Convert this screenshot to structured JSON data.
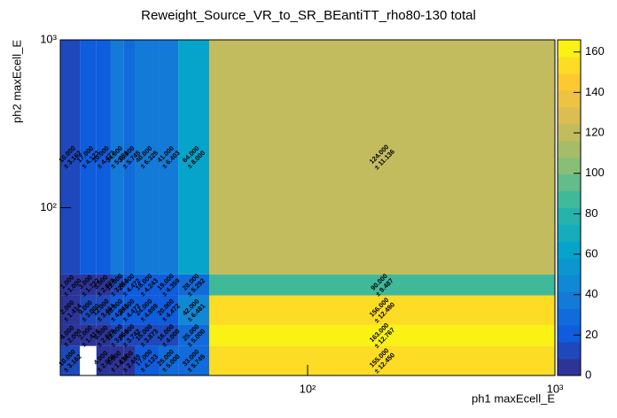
{
  "chart_data": {
    "type": "heatmap",
    "title": "Reweight_Source_VR_to_SR_BEantiTT_rho80-130 total",
    "x_label": "ph1 maxEcell_E",
    "y_label": "ph2 maxEcell_E",
    "log_x": true,
    "log_y": true,
    "xlim": [
      10,
      1000
    ],
    "ylim": [
      10,
      1000
    ],
    "xticks": [
      {
        "value": 100,
        "label": "10²"
      },
      {
        "value": 1000,
        "label": "10³"
      }
    ],
    "yticks": [
      {
        "value": 100,
        "label": "10²"
      },
      {
        "value": 1000,
        "label": "10³"
      }
    ],
    "x_edges": [
      10,
      12,
      14,
      16,
      18,
      20,
      25,
      30,
      40,
      1000
    ],
    "y_edges": [
      10,
      15,
      20,
      30,
      40,
      1000
    ],
    "z": [
      [
        10,
        null,
        4,
        2,
        6,
        17,
        25,
        33,
        155
      ],
      [
        4,
        2,
        8,
        12,
        14,
        15,
        16,
        25,
        163
      ],
      [
        2,
        9,
        12,
        18,
        20,
        24,
        20,
        42,
        156
      ],
      [
        1,
        3,
        8,
        12,
        20,
        18,
        19,
        28,
        90
      ],
      [
        10,
        17,
        20,
        34,
        33,
        40,
        41,
        64,
        124
      ]
    ],
    "value_labels": [
      [
        "10.000",
        null,
        "4.000",
        "2.000",
        "6.000",
        "17.000",
        "25.000",
        "33.000",
        "155.000"
      ],
      [
        "4.000",
        "2.000",
        "8.000",
        "12.000",
        "14.000",
        "15.000",
        "16.000",
        "25.000",
        "163.000"
      ],
      [
        "2.000",
        "9.000",
        "12.000",
        "18.000",
        "20.000",
        "24.000",
        "20.000",
        "42.000",
        "156.000"
      ],
      [
        "1.000",
        "3.000",
        "8.000",
        "12.000",
        "20.000",
        "18.000",
        "19.000",
        "28.000",
        "90.000"
      ],
      [
        "10.000",
        "17.000",
        "20.000",
        "34.000",
        "33.000",
        "40.000",
        "41.000",
        "64.000",
        "124.000"
      ]
    ],
    "error_labels": [
      [
        "± 3.162",
        null,
        "± 2.000",
        "± 1.414",
        "± 2.449",
        "± 4.123",
        "± 5.000",
        "± 5.745",
        "± 12.450"
      ],
      [
        "± 2.000",
        "± 1.414",
        "± 2.828",
        "± 3.464",
        "± 3.742",
        "± 3.873",
        "± 4.000",
        "± 5.000",
        "± 12.767"
      ],
      [
        "± 1.414",
        "± 3.000",
        "± 3.464",
        "± 4.243",
        "± 4.472",
        "± 4.899",
        "± 4.472",
        "± 6.481",
        "± 12.490"
      ],
      [
        "± 1.000",
        "± 1.732",
        "± 2.828",
        "± 3.464",
        "± 4.472",
        "± 4.243",
        "± 4.359",
        "± 5.292",
        "± 9.487"
      ],
      [
        "± 3.162",
        "± 4.123",
        "± 4.472",
        "± 5.831",
        "± 5.745",
        "± 6.325",
        "± 6.403",
        "± 8.000",
        "± 11.136"
      ]
    ],
    "zlim": [
      0,
      166
    ],
    "zticks": [
      0,
      20,
      40,
      60,
      80,
      100,
      120,
      140,
      160
    ],
    "levels": 20,
    "palette": [
      "#352a87",
      "#0f5cdd",
      "#1481d6",
      "#06a4ca",
      "#2eb7a4",
      "#87bf77",
      "#d1bb59",
      "#fec832",
      "#f9fb0e"
    ]
  }
}
